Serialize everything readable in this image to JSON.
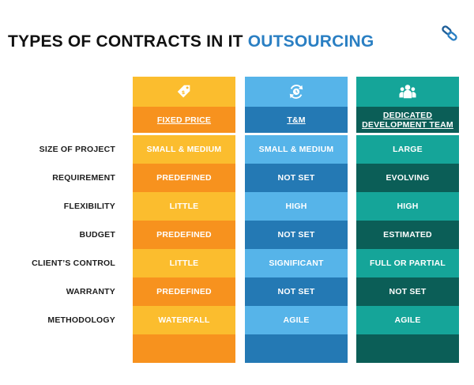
{
  "title": {
    "prefix": "TYPES OF CONTRACTS IN IT",
    "accent": "OUTSOURCING"
  },
  "colors": {
    "title_accent": "#2a7fc3",
    "fixed_light": "#fbbd2e",
    "fixed_dark": "#f7921e",
    "tm_light": "#56b4e9",
    "tm_dark": "#2479b4",
    "ddt_light": "#15a599",
    "ddt_dark": "#0b5e57"
  },
  "row_labels": [
    "SIZE OF PROJECT",
    "REQUIREMENT",
    "FLEXIBILITY",
    "BUDGET",
    "CLIENT’S CONTROL",
    "WARRANTY",
    "METHODOLOGY"
  ],
  "columns": [
    {
      "key": "fixed",
      "icon": "price-tag-icon",
      "header": "FIXED PRICE",
      "values": [
        "SMALL & MEDIUM",
        "PREDEFINED",
        "LITTLE",
        "PREDEFINED",
        "LITTLE",
        "PREDEFINED",
        "WATERFALL"
      ]
    },
    {
      "key": "tm",
      "icon": "clock-cycle-icon",
      "header": "T&M",
      "values": [
        "SMALL & MEDIUM",
        "NOT SET",
        "HIGH",
        "NOT SET",
        "SIGNIFICANT",
        "NOT SET",
        "AGILE"
      ]
    },
    {
      "key": "ddt",
      "icon": "team-icon",
      "header": "DEDICATED DEVELOPMENT TEAM",
      "values": [
        "LARGE",
        "EVOLVING",
        "HIGH",
        "ESTIMATED",
        "FULL OR PARTIAL",
        "NOT SET",
        "AGILE"
      ]
    }
  ]
}
